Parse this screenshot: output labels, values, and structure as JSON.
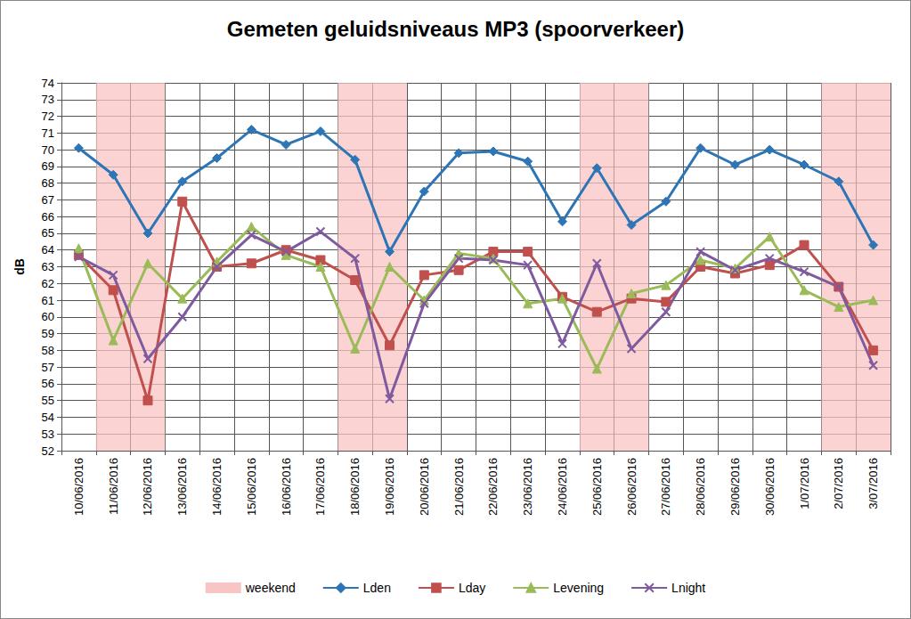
{
  "chart_data": {
    "type": "line",
    "title": "Gemeten geluidsniveaus MP3 (spoorverkeer)",
    "y_label": "dB",
    "categories": [
      "10/06/2016",
      "11/06/2016",
      "12/06/2016",
      "13/06/2016",
      "14/06/2016",
      "15/06/2016",
      "16/06/2016",
      "17/06/2016",
      "18/06/2016",
      "19/06/2016",
      "20/06/2016",
      "21/06/2016",
      "22/06/2016",
      "23/06/2016",
      "24/06/2016",
      "25/06/2016",
      "26/06/2016",
      "27/06/2016",
      "28/06/2016",
      "29/06/2016",
      "30/06/2016",
      "1/07/2016",
      "2/07/2016",
      "3/07/2016"
    ],
    "highlight": {
      "name": "weekend",
      "color": "#f9c4c4",
      "categories": [
        "11/06/2016",
        "12/06/2016",
        "18/06/2016",
        "19/06/2016",
        "25/06/2016",
        "26/06/2016",
        "2/07/2016",
        "3/07/2016"
      ]
    },
    "series": [
      {
        "name": "Lden",
        "color": "#2e75b6",
        "marker": "diamond",
        "values": [
          70.1,
          68.5,
          65.0,
          68.1,
          69.5,
          71.2,
          70.3,
          71.1,
          69.4,
          63.9,
          67.5,
          69.8,
          69.9,
          69.3,
          65.7,
          68.9,
          65.5,
          66.9,
          70.1,
          69.1,
          70.0,
          69.1,
          68.1,
          64.3
        ]
      },
      {
        "name": "Lday",
        "color": "#c0504d",
        "marker": "square",
        "values": [
          63.7,
          61.6,
          55.0,
          66.9,
          63.0,
          63.2,
          64.0,
          63.4,
          62.2,
          58.3,
          62.5,
          62.8,
          63.9,
          63.9,
          61.2,
          60.3,
          61.1,
          60.9,
          63.0,
          62.6,
          63.1,
          64.3,
          61.8,
          58.0
        ]
      },
      {
        "name": "Levening",
        "color": "#9bbb59",
        "marker": "triangle",
        "values": [
          64.1,
          58.6,
          63.2,
          61.1,
          63.3,
          65.4,
          63.7,
          63.0,
          58.1,
          63.0,
          61.0,
          63.8,
          63.5,
          60.8,
          61.1,
          56.9,
          61.4,
          61.9,
          63.4,
          62.9,
          64.8,
          61.6,
          60.6,
          61.0
        ]
      },
      {
        "name": "Lnight",
        "color": "#7f5a9f",
        "marker": "x",
        "values": [
          63.6,
          62.5,
          57.5,
          60.0,
          63.0,
          64.9,
          63.9,
          65.1,
          63.5,
          55.1,
          60.8,
          63.5,
          63.4,
          63.1,
          58.4,
          63.2,
          58.1,
          60.3,
          63.9,
          62.8,
          63.5,
          62.7,
          61.8,
          57.1
        ]
      }
    ],
    "ylim": [
      52,
      74
    ],
    "yticks": [
      52,
      53,
      54,
      55,
      56,
      57,
      58,
      59,
      60,
      61,
      62,
      63,
      64,
      65,
      66,
      67,
      68,
      69,
      70,
      71,
      72,
      73,
      74
    ],
    "grid": true,
    "legend": "bottom"
  }
}
